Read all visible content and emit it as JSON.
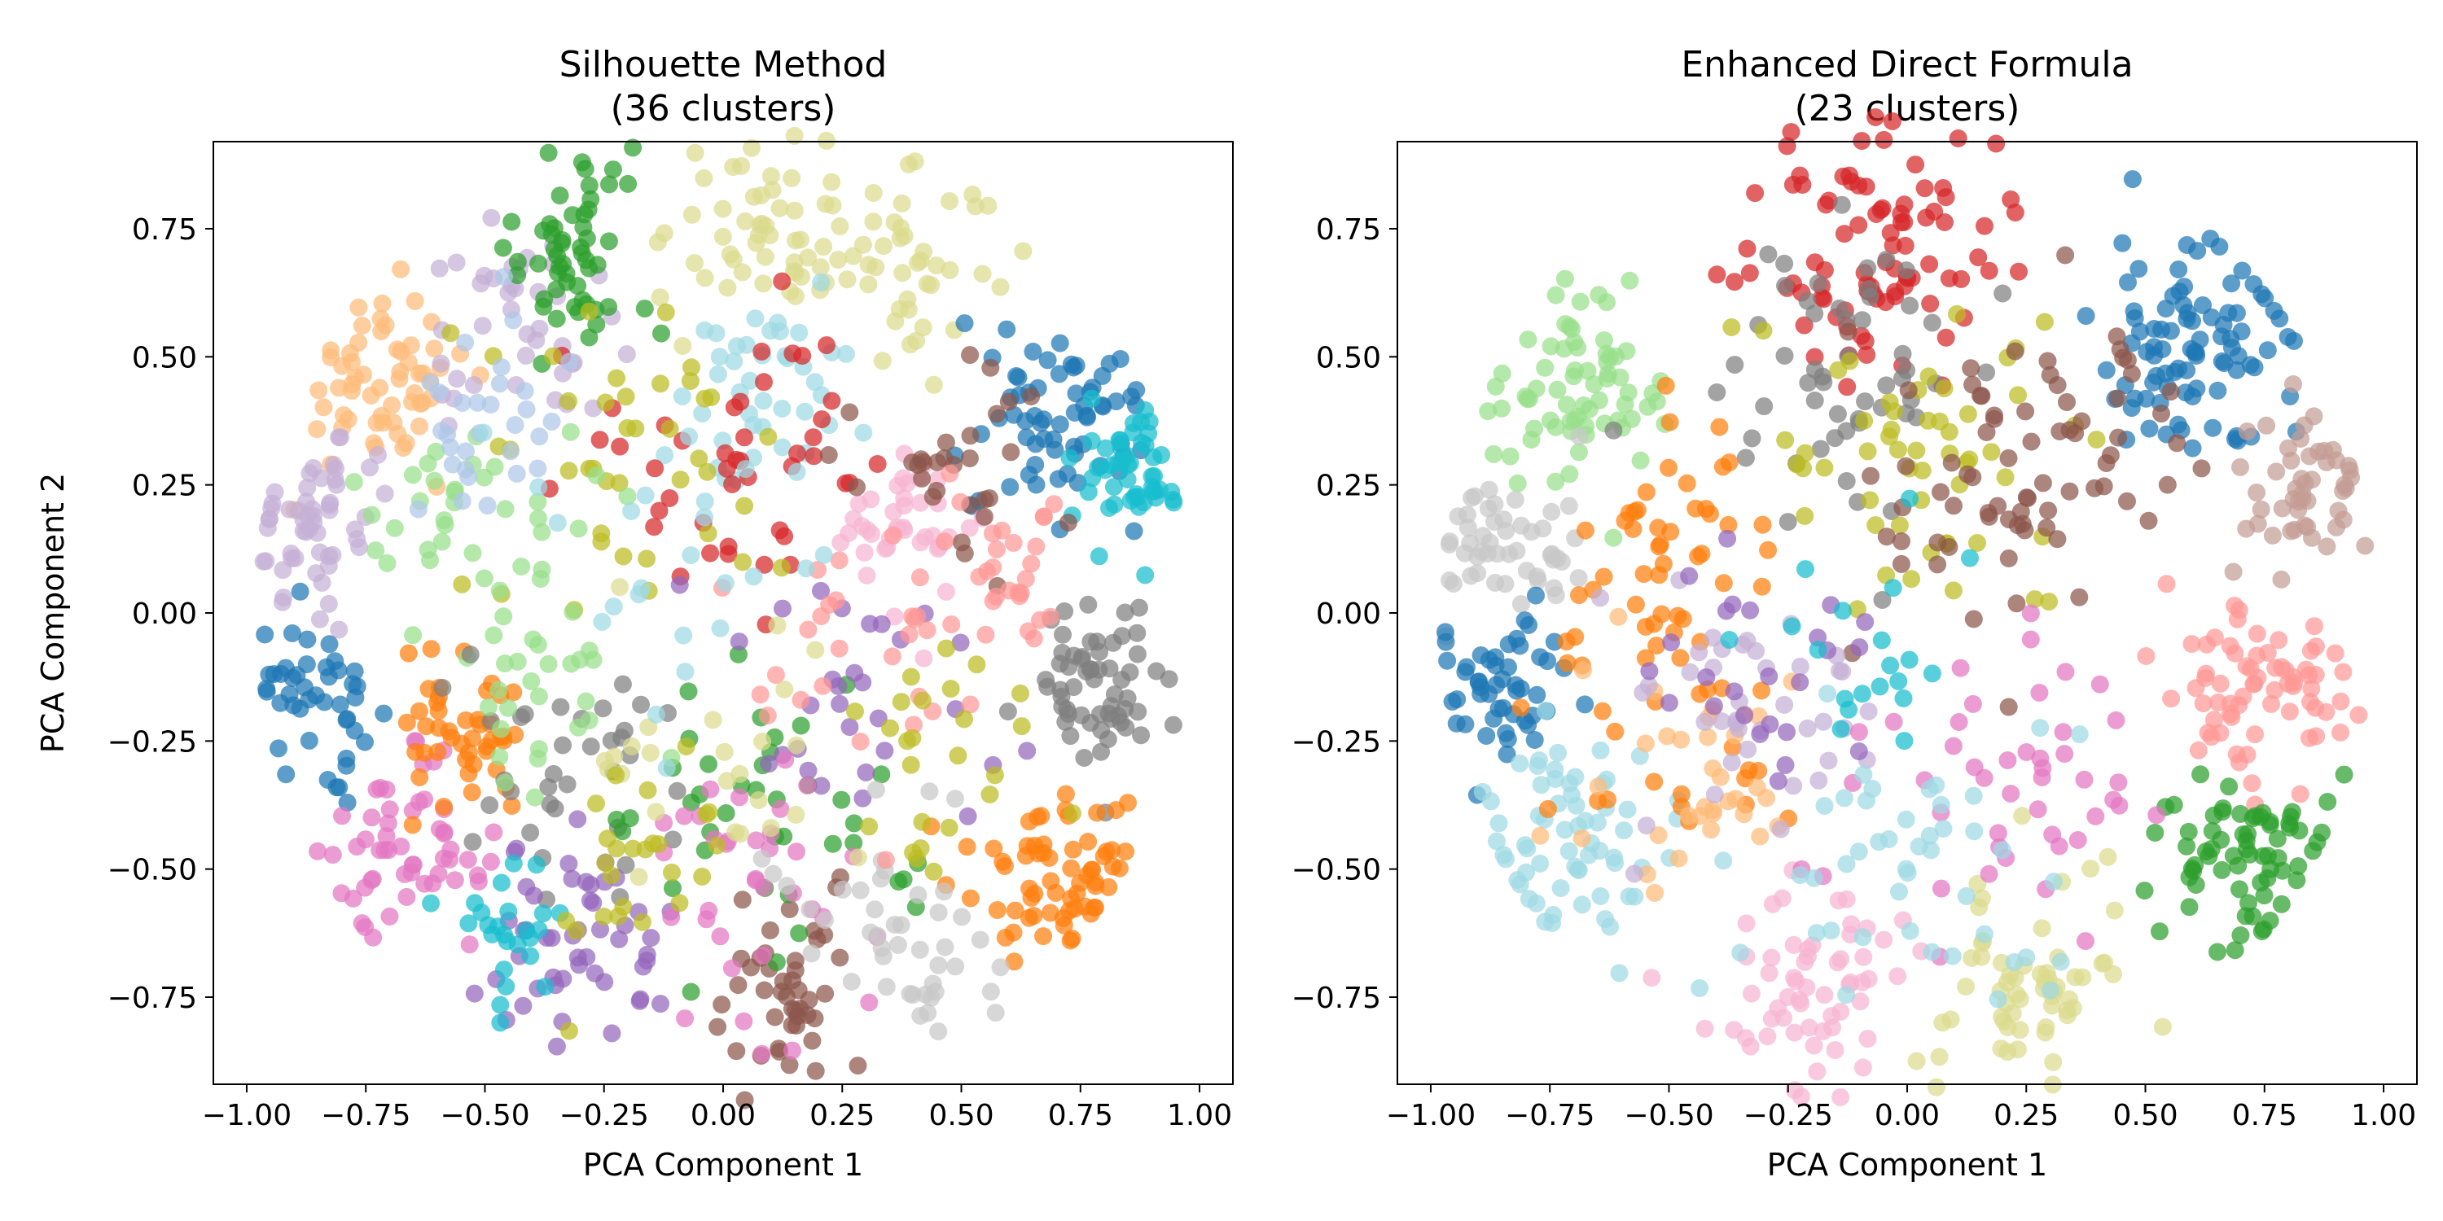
{
  "chart_data": [
    {
      "type": "scatter",
      "title": "Silhouette Method\n(36 clusters)",
      "xlabel": "PCA Component 1",
      "ylabel": "PCA Component 2",
      "xlim": [
        -1.07,
        1.07
      ],
      "ylim": [
        -0.92,
        0.92
      ],
      "xticks": [
        -1.0,
        -0.75,
        -0.5,
        -0.25,
        0.0,
        0.25,
        0.5,
        0.75,
        1.0
      ],
      "xtick_labels": [
        "−1.00",
        "−0.75",
        "−0.50",
        "−0.25",
        "0.00",
        "0.25",
        "0.50",
        "0.75",
        "1.00"
      ],
      "yticks": [
        -0.75,
        -0.5,
        -0.25,
        0.0,
        0.25,
        0.5,
        0.75
      ],
      "ytick_labels": [
        "−0.75",
        "−0.50",
        "−0.25",
        "0.00",
        "0.25",
        "0.50",
        "0.75"
      ],
      "grid": false,
      "legend": "none",
      "clusters": [
        {
          "center": [
            -0.72,
            0.45
          ],
          "spread": 0.09,
          "color": "#ffbb78",
          "count": 60
        },
        {
          "center": [
            -0.85,
            0.18
          ],
          "spread": 0.08,
          "color": "#c5b0d5",
          "count": 55
        },
        {
          "center": [
            -0.85,
            -0.15
          ],
          "spread": 0.07,
          "color": "#1f77b4",
          "count": 45
        },
        {
          "center": [
            -0.68,
            -0.48
          ],
          "spread": 0.09,
          "color": "#e377c2",
          "count": 55
        },
        {
          "center": [
            -0.55,
            -0.25
          ],
          "spread": 0.08,
          "color": "#ff7f0e",
          "count": 45
        },
        {
          "center": [
            -0.42,
            0.55
          ],
          "spread": 0.1,
          "color": "#c5b0d5",
          "count": 40
        },
        {
          "center": [
            -0.3,
            0.72
          ],
          "spread": 0.09,
          "color": "#2ca02c",
          "count": 55
        },
        {
          "center": [
            0.1,
            0.75
          ],
          "spread": 0.1,
          "color": "#dbdb8d",
          "count": 55
        },
        {
          "center": [
            0.4,
            0.68
          ],
          "spread": 0.09,
          "color": "#dbdb8d",
          "count": 40
        },
        {
          "center": [
            0.7,
            0.38
          ],
          "spread": 0.1,
          "color": "#1f77b4",
          "count": 65
        },
        {
          "center": [
            0.85,
            0.28
          ],
          "spread": 0.07,
          "color": "#17becf",
          "count": 50
        },
        {
          "center": [
            0.8,
            -0.15
          ],
          "spread": 0.08,
          "color": "#7f7f7f",
          "count": 60
        },
        {
          "center": [
            0.7,
            -0.5
          ],
          "spread": 0.09,
          "color": "#ff7f0e",
          "count": 65
        },
        {
          "center": [
            0.4,
            0.18
          ],
          "spread": 0.08,
          "color": "#f7b6d2",
          "count": 40
        },
        {
          "center": [
            0.1,
            0.45
          ],
          "spread": 0.1,
          "color": "#9edae5",
          "count": 40
        },
        {
          "center": [
            0.05,
            0.3
          ],
          "spread": 0.13,
          "color": "#d62728",
          "count": 45
        },
        {
          "center": [
            -0.2,
            0.3
          ],
          "spread": 0.15,
          "color": "#bcbd22",
          "count": 40
        },
        {
          "center": [
            -0.5,
            0.2
          ],
          "spread": 0.12,
          "color": "#98df8a",
          "count": 35
        },
        {
          "center": [
            -0.3,
            -0.3
          ],
          "spread": 0.14,
          "color": "#7f7f7f",
          "count": 35
        },
        {
          "center": [
            -0.3,
            -0.65
          ],
          "spread": 0.1,
          "color": "#9467bd",
          "count": 50
        },
        {
          "center": [
            -0.45,
            -0.62
          ],
          "spread": 0.06,
          "color": "#17becf",
          "count": 25
        },
        {
          "center": [
            0.15,
            -0.75
          ],
          "spread": 0.09,
          "color": "#8c564b",
          "count": 45
        },
        {
          "center": [
            0.1,
            -0.4
          ],
          "spread": 0.15,
          "color": "#2ca02c",
          "count": 40
        },
        {
          "center": [
            0.25,
            -0.2
          ],
          "spread": 0.15,
          "color": "#9467bd",
          "count": 30
        },
        {
          "center": [
            0.1,
            -0.55
          ],
          "spread": 0.15,
          "color": "#e377c2",
          "count": 35
        },
        {
          "center": [
            -0.4,
            -0.1
          ],
          "spread": 0.12,
          "color": "#98df8a",
          "count": 30
        },
        {
          "center": [
            0.3,
            -0.55
          ],
          "spread": 0.12,
          "color": "#c7c7c7",
          "count": 25
        },
        {
          "center": [
            0.45,
            0.3
          ],
          "spread": 0.12,
          "color": "#8c564b",
          "count": 30
        },
        {
          "center": [
            0.3,
            0.0
          ],
          "spread": 0.15,
          "color": "#ff9896",
          "count": 30
        },
        {
          "center": [
            -0.5,
            0.4
          ],
          "spread": 0.1,
          "color": "#aec7e8",
          "count": 30
        },
        {
          "center": [
            0.0,
            -0.3
          ],
          "spread": 0.15,
          "color": "#dbdb8d",
          "count": 25
        },
        {
          "center": [
            0.5,
            -0.3
          ],
          "spread": 0.12,
          "color": "#bcbd22",
          "count": 25
        },
        {
          "center": [
            -0.1,
            0.1
          ],
          "spread": 0.15,
          "color": "#9edae5",
          "count": 25
        },
        {
          "center": [
            0.6,
            0.1
          ],
          "spread": 0.1,
          "color": "#ff9896",
          "count": 25
        },
        {
          "center": [
            -0.15,
            -0.5
          ],
          "spread": 0.12,
          "color": "#bcbd22",
          "count": 25
        },
        {
          "center": [
            0.45,
            -0.7
          ],
          "spread": 0.08,
          "color": "#c7c7c7",
          "count": 20
        }
      ]
    },
    {
      "type": "scatter",
      "title": "Enhanced Direct Formula\n(23 clusters)",
      "xlabel": "PCA Component 1",
      "ylabel": "",
      "xlim": [
        -1.07,
        1.07
      ],
      "ylim": [
        -0.92,
        0.92
      ],
      "xticks": [
        -1.0,
        -0.75,
        -0.5,
        -0.25,
        0.0,
        0.25,
        0.5,
        0.75,
        1.0
      ],
      "xtick_labels": [
        "−1.00",
        "−0.75",
        "−0.50",
        "−0.25",
        "0.00",
        "0.25",
        "0.50",
        "0.75",
        "1.00"
      ],
      "yticks": [
        -0.75,
        -0.5,
        -0.25,
        0.0,
        0.25,
        0.5,
        0.75
      ],
      "ytick_labels": [
        "−0.75",
        "−0.50",
        "−0.25",
        "0.00",
        "0.25",
        "0.50",
        "0.75"
      ],
      "grid": false,
      "legend": "none",
      "clusters": [
        {
          "center": [
            -0.05,
            0.72
          ],
          "spread": 0.12,
          "color": "#d62728",
          "count": 90
        },
        {
          "center": [
            0.6,
            0.52
          ],
          "spread": 0.11,
          "color": "#1f77b4",
          "count": 90
        },
        {
          "center": [
            -0.7,
            0.45
          ],
          "spread": 0.1,
          "color": "#98df8a",
          "count": 70
        },
        {
          "center": [
            -0.85,
            0.15
          ],
          "spread": 0.08,
          "color": "#c7c7c7",
          "count": 50
        },
        {
          "center": [
            -0.85,
            -0.15
          ],
          "spread": 0.08,
          "color": "#1f77b4",
          "count": 50
        },
        {
          "center": [
            -0.7,
            -0.45
          ],
          "spread": 0.1,
          "color": "#9edae5",
          "count": 65
        },
        {
          "center": [
            0.85,
            0.25
          ],
          "spread": 0.08,
          "color": "#c49c94",
          "count": 50
        },
        {
          "center": [
            0.75,
            -0.15
          ],
          "spread": 0.1,
          "color": "#ff9896",
          "count": 70
        },
        {
          "center": [
            0.7,
            -0.48
          ],
          "spread": 0.09,
          "color": "#2ca02c",
          "count": 70
        },
        {
          "center": [
            0.25,
            -0.72
          ],
          "spread": 0.1,
          "color": "#dbdb8d",
          "count": 60
        },
        {
          "center": [
            -0.2,
            -0.72
          ],
          "spread": 0.1,
          "color": "#f7b6d2",
          "count": 60
        },
        {
          "center": [
            -0.1,
            0.45
          ],
          "spread": 0.15,
          "color": "#7f7f7f",
          "count": 55
        },
        {
          "center": [
            0.0,
            0.28
          ],
          "spread": 0.15,
          "color": "#bcbd22",
          "count": 55
        },
        {
          "center": [
            0.2,
            0.2
          ],
          "spread": 0.15,
          "color": "#8c564b",
          "count": 45
        },
        {
          "center": [
            -0.5,
            0.15
          ],
          "spread": 0.12,
          "color": "#ff7f0e",
          "count": 40
        },
        {
          "center": [
            -0.55,
            -0.2
          ],
          "spread": 0.12,
          "color": "#ff7f0e",
          "count": 30
        },
        {
          "center": [
            -0.45,
            -0.35
          ],
          "spread": 0.12,
          "color": "#ffbb78",
          "count": 35
        },
        {
          "center": [
            -0.3,
            -0.2
          ],
          "spread": 0.14,
          "color": "#c5b0d5",
          "count": 40
        },
        {
          "center": [
            0.2,
            -0.35
          ],
          "spread": 0.16,
          "color": "#e377c2",
          "count": 45
        },
        {
          "center": [
            0.0,
            -0.5
          ],
          "spread": 0.16,
          "color": "#9edae5",
          "count": 45
        },
        {
          "center": [
            -0.35,
            -0.1
          ],
          "spread": 0.14,
          "color": "#9467bd",
          "count": 25
        },
        {
          "center": [
            -0.1,
            -0.05
          ],
          "spread": 0.12,
          "color": "#17becf",
          "count": 20
        },
        {
          "center": [
            0.4,
            0.35
          ],
          "spread": 0.12,
          "color": "#8c564b",
          "count": 30
        }
      ]
    }
  ]
}
